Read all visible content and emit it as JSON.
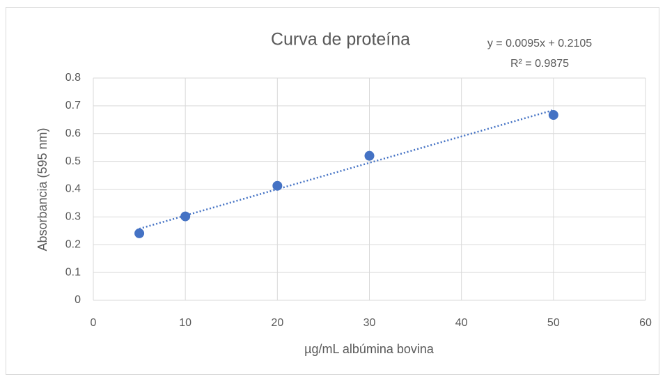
{
  "chart_data": {
    "type": "scatter",
    "title": "Curva de proteína",
    "annotations": [
      "y = 0.0095x + 0.2105",
      "R² = 0.9875"
    ],
    "xlabel": "µg/mL albúmina bovina",
    "ylabel": "Absorbancia (595 nm)",
    "series": [
      {
        "name": "Absorbancia",
        "color": "#4472c4",
        "x": [
          5,
          10,
          20,
          30,
          50
        ],
        "values": [
          0.241,
          0.302,
          0.412,
          0.52,
          0.667
        ]
      }
    ],
    "trendline": "linear",
    "xlim": [
      0,
      60
    ],
    "xticks": [
      0,
      10,
      20,
      30,
      40,
      50,
      60
    ],
    "ylim": [
      0,
      0.8
    ],
    "yticks": [
      {
        "value": 0,
        "label": "0"
      },
      0.1,
      0.2,
      0.3,
      0.4,
      0.5,
      0.6,
      0.7,
      0.8
    ],
    "grid": true
  }
}
